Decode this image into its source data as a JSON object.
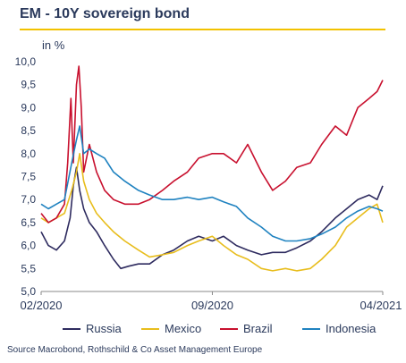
{
  "chart_data": {
    "type": "line",
    "title": "EM - 10Y sovereign bond",
    "ylabel": "in %",
    "ylim": [
      5.0,
      10.0
    ],
    "yticks": [
      "5,0",
      "5,5",
      "6,0",
      "6,5",
      "7,0",
      "7,5",
      "8,0",
      "8,5",
      "9,0",
      "9,5",
      "10,0"
    ],
    "ytick_values": [
      5.0,
      5.5,
      6.0,
      6.5,
      7.0,
      7.5,
      8.0,
      8.5,
      9.0,
      9.5,
      10.0
    ],
    "xlim": [
      "2020-02-01",
      "2021-04-01"
    ],
    "xticks": [
      "02/2020",
      "09/2020",
      "04/2021"
    ],
    "grid": false,
    "legend_position": "bottom",
    "source": "Source Macrobond, Rothschild & Co Asset Management Europe",
    "series": [
      {
        "name": "Russia",
        "color": "#2e2b5f",
        "points": [
          [
            "2020-02-01",
            6.3
          ],
          [
            "2020-02-10",
            6.0
          ],
          [
            "2020-02-20",
            5.9
          ],
          [
            "2020-03-01",
            6.1
          ],
          [
            "2020-03-08",
            6.6
          ],
          [
            "2020-03-12",
            7.3
          ],
          [
            "2020-03-16",
            7.7
          ],
          [
            "2020-03-20",
            7.2
          ],
          [
            "2020-03-25",
            6.8
          ],
          [
            "2020-04-01",
            6.5
          ],
          [
            "2020-04-10",
            6.3
          ],
          [
            "2020-04-20",
            6.0
          ],
          [
            "2020-05-01",
            5.7
          ],
          [
            "2020-05-10",
            5.5
          ],
          [
            "2020-05-20",
            5.55
          ],
          [
            "2020-06-01",
            5.6
          ],
          [
            "2020-06-15",
            5.6
          ],
          [
            "2020-07-01",
            5.8
          ],
          [
            "2020-07-15",
            5.9
          ],
          [
            "2020-08-01",
            6.1
          ],
          [
            "2020-08-15",
            6.2
          ],
          [
            "2020-09-01",
            6.1
          ],
          [
            "2020-09-15",
            6.2
          ],
          [
            "2020-10-01",
            6.0
          ],
          [
            "2020-10-15",
            5.9
          ],
          [
            "2020-11-01",
            5.8
          ],
          [
            "2020-11-15",
            5.85
          ],
          [
            "2020-12-01",
            5.85
          ],
          [
            "2020-12-15",
            5.95
          ],
          [
            "2021-01-01",
            6.1
          ],
          [
            "2021-01-15",
            6.3
          ],
          [
            "2021-02-01",
            6.6
          ],
          [
            "2021-02-15",
            6.8
          ],
          [
            "2021-03-01",
            7.0
          ],
          [
            "2021-03-15",
            7.1
          ],
          [
            "2021-03-25",
            7.0
          ],
          [
            "2021-04-01",
            7.3
          ]
        ]
      },
      {
        "name": "Mexico",
        "color": "#e8bd1c",
        "points": [
          [
            "2020-02-01",
            6.6
          ],
          [
            "2020-02-10",
            6.5
          ],
          [
            "2020-02-20",
            6.6
          ],
          [
            "2020-03-01",
            6.7
          ],
          [
            "2020-03-10",
            7.2
          ],
          [
            "2020-03-16",
            7.6
          ],
          [
            "2020-03-20",
            8.0
          ],
          [
            "2020-03-25",
            7.4
          ],
          [
            "2020-04-01",
            7.0
          ],
          [
            "2020-04-10",
            6.7
          ],
          [
            "2020-04-20",
            6.5
          ],
          [
            "2020-05-01",
            6.3
          ],
          [
            "2020-05-15",
            6.1
          ],
          [
            "2020-06-01",
            5.9
          ],
          [
            "2020-06-15",
            5.75
          ],
          [
            "2020-07-01",
            5.8
          ],
          [
            "2020-07-15",
            5.85
          ],
          [
            "2020-08-01",
            6.0
          ],
          [
            "2020-08-15",
            6.1
          ],
          [
            "2020-09-01",
            6.2
          ],
          [
            "2020-09-15",
            6.0
          ],
          [
            "2020-10-01",
            5.8
          ],
          [
            "2020-10-15",
            5.7
          ],
          [
            "2020-11-01",
            5.5
          ],
          [
            "2020-11-15",
            5.45
          ],
          [
            "2020-12-01",
            5.5
          ],
          [
            "2020-12-15",
            5.45
          ],
          [
            "2021-01-01",
            5.5
          ],
          [
            "2021-01-15",
            5.7
          ],
          [
            "2021-02-01",
            6.0
          ],
          [
            "2021-02-15",
            6.4
          ],
          [
            "2021-03-01",
            6.6
          ],
          [
            "2021-03-15",
            6.8
          ],
          [
            "2021-03-25",
            6.9
          ],
          [
            "2021-04-01",
            6.5
          ]
        ]
      },
      {
        "name": "Brazil",
        "color": "#c8102e",
        "points": [
          [
            "2020-02-01",
            6.7
          ],
          [
            "2020-02-10",
            6.5
          ],
          [
            "2020-02-20",
            6.6
          ],
          [
            "2020-03-01",
            6.9
          ],
          [
            "2020-03-05",
            7.8
          ],
          [
            "2020-03-09",
            9.2
          ],
          [
            "2020-03-12",
            7.8
          ],
          [
            "2020-03-16",
            9.5
          ],
          [
            "2020-03-19",
            9.9
          ],
          [
            "2020-03-22",
            9.0
          ],
          [
            "2020-03-25",
            7.6
          ],
          [
            "2020-04-01",
            8.2
          ],
          [
            "2020-04-10",
            7.6
          ],
          [
            "2020-04-20",
            7.2
          ],
          [
            "2020-05-01",
            7.0
          ],
          [
            "2020-05-15",
            6.9
          ],
          [
            "2020-06-01",
            6.9
          ],
          [
            "2020-06-15",
            7.0
          ],
          [
            "2020-07-01",
            7.2
          ],
          [
            "2020-07-15",
            7.4
          ],
          [
            "2020-08-01",
            7.6
          ],
          [
            "2020-08-15",
            7.9
          ],
          [
            "2020-09-01",
            8.0
          ],
          [
            "2020-09-15",
            8.0
          ],
          [
            "2020-10-01",
            7.8
          ],
          [
            "2020-10-15",
            8.2
          ],
          [
            "2020-11-01",
            7.6
          ],
          [
            "2020-11-15",
            7.2
          ],
          [
            "2020-12-01",
            7.4
          ],
          [
            "2020-12-15",
            7.7
          ],
          [
            "2021-01-01",
            7.8
          ],
          [
            "2021-01-15",
            8.2
          ],
          [
            "2021-02-01",
            8.6
          ],
          [
            "2021-02-15",
            8.4
          ],
          [
            "2021-03-01",
            9.0
          ],
          [
            "2021-03-15",
            9.2
          ],
          [
            "2021-03-25",
            9.35
          ],
          [
            "2021-04-01",
            9.6
          ]
        ]
      },
      {
        "name": "Indonesia",
        "color": "#1f82c0",
        "points": [
          [
            "2020-02-01",
            6.9
          ],
          [
            "2020-02-10",
            6.8
          ],
          [
            "2020-02-20",
            6.9
          ],
          [
            "2020-03-01",
            7.0
          ],
          [
            "2020-03-10",
            7.8
          ],
          [
            "2020-03-16",
            8.3
          ],
          [
            "2020-03-20",
            8.6
          ],
          [
            "2020-03-25",
            8.0
          ],
          [
            "2020-04-01",
            8.1
          ],
          [
            "2020-04-10",
            8.0
          ],
          [
            "2020-04-20",
            7.9
          ],
          [
            "2020-05-01",
            7.6
          ],
          [
            "2020-05-15",
            7.4
          ],
          [
            "2020-06-01",
            7.2
          ],
          [
            "2020-06-15",
            7.1
          ],
          [
            "2020-07-01",
            7.0
          ],
          [
            "2020-07-15",
            7.0
          ],
          [
            "2020-08-01",
            7.05
          ],
          [
            "2020-08-15",
            7.0
          ],
          [
            "2020-09-01",
            7.05
          ],
          [
            "2020-09-15",
            6.95
          ],
          [
            "2020-10-01",
            6.85
          ],
          [
            "2020-10-15",
            6.6
          ],
          [
            "2020-11-01",
            6.4
          ],
          [
            "2020-11-15",
            6.2
          ],
          [
            "2020-12-01",
            6.1
          ],
          [
            "2020-12-15",
            6.1
          ],
          [
            "2021-01-01",
            6.15
          ],
          [
            "2021-01-15",
            6.25
          ],
          [
            "2021-02-01",
            6.4
          ],
          [
            "2021-02-15",
            6.6
          ],
          [
            "2021-03-01",
            6.75
          ],
          [
            "2021-03-15",
            6.85
          ],
          [
            "2021-03-25",
            6.8
          ],
          [
            "2021-04-01",
            6.75
          ]
        ]
      }
    ]
  }
}
